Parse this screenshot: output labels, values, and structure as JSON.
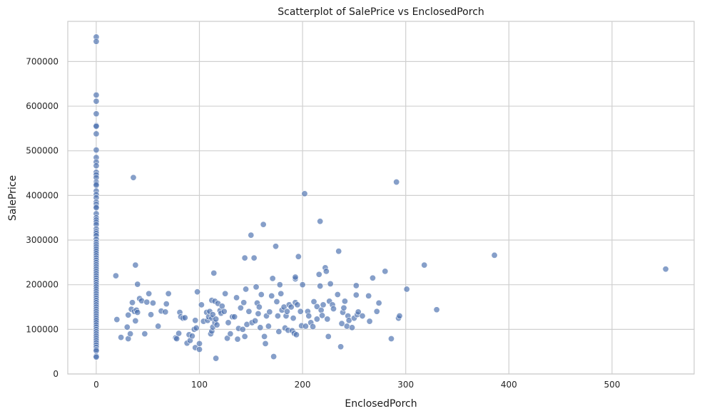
{
  "chart_data": {
    "type": "scatter",
    "title": "Scatterplot of SalePrice vs EnclosedPorch",
    "xlabel": "EnclosedPorch",
    "ylabel": "SalePrice",
    "xlim": [
      -27.6,
      579.6
    ],
    "ylim": [
      0,
      790000
    ],
    "xticks": [
      0,
      100,
      200,
      300,
      400,
      500
    ],
    "yticks": [
      0,
      100000,
      200000,
      300000,
      400000,
      500000,
      600000,
      700000
    ],
    "grid": true,
    "marker_color": "#4c72b0",
    "points": [
      [
        0,
        755000
      ],
      [
        0,
        745000
      ],
      [
        0,
        625000
      ],
      [
        0,
        611000
      ],
      [
        0,
        582900
      ],
      [
        0,
        556581
      ],
      [
        0,
        555000
      ],
      [
        0,
        538000
      ],
      [
        0,
        501837
      ],
      [
        0,
        485000
      ],
      [
        0,
        475000
      ],
      [
        0,
        466500
      ],
      [
        0,
        451950
      ],
      [
        0,
        446261
      ],
      [
        0,
        440000
      ],
      [
        0,
        430000
      ],
      [
        0,
        426000
      ],
      [
        0,
        423000
      ],
      [
        0,
        410000
      ],
      [
        0,
        402000
      ],
      [
        0,
        395000
      ],
      [
        0,
        385000
      ],
      [
        0,
        380000
      ],
      [
        0,
        375000
      ],
      [
        0,
        372500
      ],
      [
        0,
        359100
      ],
      [
        0,
        350000
      ],
      [
        0,
        345000
      ],
      [
        0,
        340000
      ],
      [
        0,
        335000
      ],
      [
        0,
        325000
      ],
      [
        0,
        319000
      ],
      [
        0,
        315000
      ],
      [
        0,
        310000
      ],
      [
        0,
        302000
      ],
      [
        0,
        295000
      ],
      [
        0,
        290000
      ],
      [
        0,
        285000
      ],
      [
        0,
        280000
      ],
      [
        0,
        275000
      ],
      [
        0,
        270000
      ],
      [
        0,
        265000
      ],
      [
        0,
        260000
      ],
      [
        0,
        255000
      ],
      [
        0,
        250000
      ],
      [
        0,
        245000
      ],
      [
        0,
        240000
      ],
      [
        0,
        235000
      ],
      [
        0,
        230000
      ],
      [
        0,
        225000
      ],
      [
        0,
        220000
      ],
      [
        0,
        215000
      ],
      [
        0,
        210000
      ],
      [
        0,
        205000
      ],
      [
        0,
        200000
      ],
      [
        0,
        195000
      ],
      [
        0,
        190000
      ],
      [
        0,
        185000
      ],
      [
        0,
        180000
      ],
      [
        0,
        175000
      ],
      [
        0,
        170000
      ],
      [
        0,
        165000
      ],
      [
        0,
        160000
      ],
      [
        0,
        155000
      ],
      [
        0,
        150000
      ],
      [
        0,
        145000
      ],
      [
        0,
        140000
      ],
      [
        0,
        135000
      ],
      [
        0,
        130000
      ],
      [
        0,
        125000
      ],
      [
        0,
        120000
      ],
      [
        0,
        115000
      ],
      [
        0,
        110000
      ],
      [
        0,
        105000
      ],
      [
        0,
        100000
      ],
      [
        0,
        95000
      ],
      [
        0,
        90000
      ],
      [
        0,
        85000
      ],
      [
        0,
        80000
      ],
      [
        0,
        75000
      ],
      [
        0,
        70000
      ],
      [
        0,
        65000
      ],
      [
        0,
        60000
      ],
      [
        0,
        55000
      ],
      [
        0,
        52000
      ],
      [
        0,
        40000
      ],
      [
        0,
        37900
      ],
      [
        19,
        220000
      ],
      [
        20,
        122000
      ],
      [
        24,
        82000
      ],
      [
        30,
        105000
      ],
      [
        31,
        132000
      ],
      [
        31,
        79000
      ],
      [
        33,
        90000
      ],
      [
        34,
        145000
      ],
      [
        35,
        160000
      ],
      [
        36,
        440000
      ],
      [
        37,
        140000
      ],
      [
        38,
        119000
      ],
      [
        38,
        244000
      ],
      [
        39,
        143000
      ],
      [
        40,
        201000
      ],
      [
        40,
        138000
      ],
      [
        42,
        169000
      ],
      [
        44,
        164000
      ],
      [
        47,
        90000
      ],
      [
        49,
        161000
      ],
      [
        51,
        180000
      ],
      [
        53,
        133000
      ],
      [
        55,
        159000
      ],
      [
        60,
        107000
      ],
      [
        63,
        141000
      ],
      [
        67,
        139000
      ],
      [
        68,
        157000
      ],
      [
        70,
        180000
      ],
      [
        77,
        81000
      ],
      [
        78,
        79000
      ],
      [
        80,
        91000
      ],
      [
        81,
        138000
      ],
      [
        82,
        128000
      ],
      [
        84,
        125000
      ],
      [
        86,
        126000
      ],
      [
        88,
        69000
      ],
      [
        90,
        88000
      ],
      [
        91,
        75000
      ],
      [
        93,
        85000
      ],
      [
        95,
        100000
      ],
      [
        96,
        120000
      ],
      [
        96,
        59000
      ],
      [
        97,
        103000
      ],
      [
        98,
        184000
      ],
      [
        100,
        55000
      ],
      [
        100,
        68000
      ],
      [
        102,
        155000
      ],
      [
        104,
        118000
      ],
      [
        107,
        138000
      ],
      [
        108,
        120000
      ],
      [
        109,
        128000
      ],
      [
        110,
        140000
      ],
      [
        111,
        90000
      ],
      [
        112,
        165000
      ],
      [
        112,
        96000
      ],
      [
        112,
        125000
      ],
      [
        113,
        105000
      ],
      [
        113,
        133000
      ],
      [
        114,
        226000
      ],
      [
        115,
        163000
      ],
      [
        115,
        115000
      ],
      [
        116,
        35000
      ],
      [
        116,
        123000
      ],
      [
        117,
        110000
      ],
      [
        118,
        158000
      ],
      [
        120,
        142000
      ],
      [
        121,
        136000
      ],
      [
        122,
        152000
      ],
      [
        124,
        140000
      ],
      [
        125,
        180000
      ],
      [
        127,
        80000
      ],
      [
        128,
        115000
      ],
      [
        130,
        90000
      ],
      [
        132,
        128000
      ],
      [
        134,
        128000
      ],
      [
        136,
        171000
      ],
      [
        137,
        78000
      ],
      [
        138,
        102000
      ],
      [
        140,
        148000
      ],
      [
        142,
        100000
      ],
      [
        143,
        160000
      ],
      [
        144,
        84000
      ],
      [
        144,
        260000
      ],
      [
        145,
        190000
      ],
      [
        146,
        111000
      ],
      [
        148,
        140000
      ],
      [
        150,
        311000
      ],
      [
        151,
        115000
      ],
      [
        153,
        260000
      ],
      [
        154,
        119000
      ],
      [
        155,
        195000
      ],
      [
        156,
        159000
      ],
      [
        157,
        135000
      ],
      [
        158,
        150000
      ],
      [
        159,
        104000
      ],
      [
        160,
        178000
      ],
      [
        162,
        335000
      ],
      [
        163,
        84000
      ],
      [
        164,
        68000
      ],
      [
        165,
        130000
      ],
      [
        167,
        107000
      ],
      [
        168,
        139000
      ],
      [
        170,
        175000
      ],
      [
        171,
        214000
      ],
      [
        172,
        39000
      ],
      [
        174,
        286000
      ],
      [
        175,
        162000
      ],
      [
        176,
        130000
      ],
      [
        177,
        95000
      ],
      [
        178,
        200000
      ],
      [
        179,
        180000
      ],
      [
        180,
        143000
      ],
      [
        182,
        150000
      ],
      [
        183,
        103000
      ],
      [
        184,
        130000
      ],
      [
        185,
        140000
      ],
      [
        186,
        98000
      ],
      [
        187,
        155000
      ],
      [
        189,
        150000
      ],
      [
        190,
        97000
      ],
      [
        191,
        125000
      ],
      [
        192,
        91000
      ],
      [
        193,
        213000
      ],
      [
        193,
        217000
      ],
      [
        193,
        160000
      ],
      [
        194,
        88000
      ],
      [
        195,
        155000
      ],
      [
        196,
        263000
      ],
      [
        198,
        140000
      ],
      [
        199,
        108000
      ],
      [
        200,
        200000
      ],
      [
        202,
        404000
      ],
      [
        203,
        107000
      ],
      [
        205,
        140000
      ],
      [
        206,
        130000
      ],
      [
        208,
        115000
      ],
      [
        210,
        106000
      ],
      [
        211,
        162000
      ],
      [
        214,
        151000
      ],
      [
        214,
        123000
      ],
      [
        216,
        223000
      ],
      [
        217,
        342000
      ],
      [
        217,
        197000
      ],
      [
        218,
        143000
      ],
      [
        219,
        131000
      ],
      [
        220,
        155000
      ],
      [
        222,
        238000
      ],
      [
        223,
        230000
      ],
      [
        224,
        123000
      ],
      [
        225,
        84000
      ],
      [
        226,
        163000
      ],
      [
        227,
        202000
      ],
      [
        229,
        155000
      ],
      [
        230,
        146000
      ],
      [
        234,
        178000
      ],
      [
        235,
        275000
      ],
      [
        237,
        61000
      ],
      [
        238,
        113000
      ],
      [
        239,
        138000
      ],
      [
        240,
        148000
      ],
      [
        241,
        163000
      ],
      [
        243,
        107000
      ],
      [
        244,
        130000
      ],
      [
        245,
        120000
      ],
      [
        248,
        104000
      ],
      [
        250,
        125000
      ],
      [
        252,
        198000
      ],
      [
        252,
        177000
      ],
      [
        253,
        133000
      ],
      [
        254,
        139000
      ],
      [
        258,
        130000
      ],
      [
        264,
        175000
      ],
      [
        265,
        118000
      ],
      [
        268,
        215000
      ],
      [
        272,
        140000
      ],
      [
        274,
        159000
      ],
      [
        280,
        230000
      ],
      [
        286,
        79000
      ],
      [
        291,
        430000
      ],
      [
        293,
        125000
      ],
      [
        294,
        130000
      ],
      [
        301,
        190000
      ],
      [
        318,
        244000
      ],
      [
        330,
        144000
      ],
      [
        386,
        266000
      ],
      [
        552,
        235000
      ]
    ]
  }
}
